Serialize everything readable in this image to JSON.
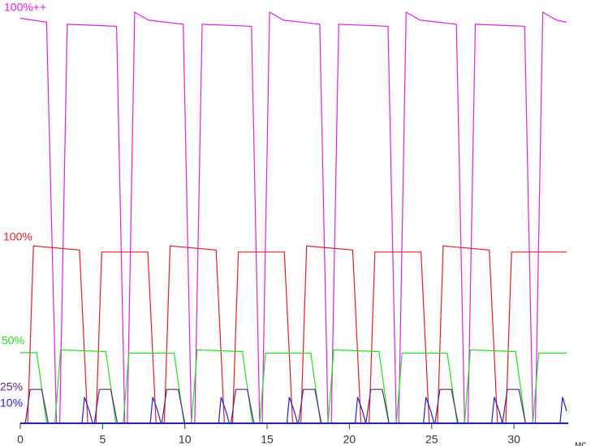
{
  "chart_data": {
    "type": "line",
    "x_label": "мс",
    "xlim": [
      0,
      33.3
    ],
    "xticks": [
      0,
      5,
      10,
      15,
      20,
      25,
      30
    ],
    "ylim": [
      0,
      102
    ],
    "series": [
      {
        "name": "100%++",
        "color": "#e020e0",
        "x": [
          0,
          1.6,
          2.2,
          2.4,
          2.85,
          5.85,
          6.35,
          6.5,
          6.95,
          7.8,
          9.9,
          10.4,
          10.6,
          11.05,
          14.05,
          14.55,
          14.7,
          15.15,
          16,
          18.2,
          18.7,
          18.9,
          19.35,
          22.35,
          22.85,
          23.0,
          23.45,
          24.3,
          26.5,
          27.0,
          27.2,
          27.65,
          30.65,
          31.15,
          31.3,
          31.75,
          32.6,
          33.2
        ],
        "values": [
          100.5,
          99.5,
          0,
          0,
          99,
          98.5,
          0,
          0,
          102,
          100,
          99,
          0,
          0,
          99,
          98.5,
          0,
          0,
          102,
          100,
          99,
          0,
          0,
          99,
          98.5,
          0,
          0,
          102,
          100,
          99,
          0,
          0,
          99,
          98.5,
          0,
          0,
          102,
          100,
          99.5
        ]
      },
      {
        "name": "100%",
        "color": "#e02020",
        "x": [
          0,
          0.45,
          0.8,
          3.6,
          4.1,
          4.6,
          4.95,
          7.75,
          8.25,
          8.75,
          9.1,
          11.9,
          12.4,
          12.9,
          13.25,
          16.05,
          16.55,
          17.05,
          17.4,
          20.2,
          20.7,
          21.2,
          21.55,
          24.35,
          24.85,
          25.35,
          25.7,
          28.5,
          29.0,
          29.5,
          29.85,
          33.2
        ],
        "values": [
          0,
          0,
          44,
          43,
          0,
          0,
          42.5,
          42.5,
          0,
          0,
          44,
          43,
          0,
          0,
          42.5,
          42.5,
          0,
          0,
          44,
          43,
          0,
          0,
          42.5,
          42.5,
          0,
          0,
          44,
          43,
          0,
          0,
          42.5,
          42.5
        ]
      },
      {
        "name": "50%",
        "color": "#20e020",
        "x": [
          0,
          1.0,
          1.6,
          2.1,
          2.45,
          5.2,
          5.8,
          6.25,
          6.6,
          9.35,
          9.95,
          10.4,
          10.75,
          13.5,
          14.1,
          14.55,
          14.9,
          17.65,
          18.25,
          18.7,
          19.05,
          21.8,
          22.4,
          22.85,
          23.2,
          25.95,
          26.55,
          27.0,
          27.35,
          30.1,
          30.7,
          31.15,
          31.5,
          33.2
        ],
        "values": [
          17.5,
          17.5,
          0,
          0,
          18.2,
          17.8,
          0,
          0,
          17.4,
          17.4,
          0,
          0,
          18.2,
          17.8,
          0,
          0,
          17.4,
          17.4,
          0,
          0,
          18.2,
          17.8,
          0,
          0,
          17.4,
          17.4,
          0,
          0,
          18.2,
          17.8,
          0,
          0,
          17.4,
          17.4
        ]
      },
      {
        "name": "25%",
        "color": "#602080",
        "x": [
          0,
          0.3,
          0.6,
          1.3,
          1.7,
          4.5,
          4.8,
          5.5,
          5.9,
          8.6,
          8.9,
          9.6,
          10.0,
          12.8,
          13.1,
          13.8,
          14.2,
          16.9,
          17.2,
          17.9,
          18.3,
          21.0,
          21.3,
          22.0,
          22.4,
          25.2,
          25.5,
          26.2,
          26.6,
          29.3,
          29.6,
          30.3,
          30.7,
          33.2
        ],
        "values": [
          0,
          0,
          8.4,
          8.4,
          0,
          0,
          8.4,
          8.4,
          0,
          0,
          8.4,
          8.4,
          0,
          0,
          8.4,
          8.4,
          0,
          0,
          8.4,
          8.4,
          0,
          0,
          8.4,
          8.4,
          0,
          0,
          8.4,
          8.4,
          0,
          0,
          8.4,
          8.4,
          0,
          0
        ]
      },
      {
        "name": "10%",
        "color": "#2020d0",
        "x": [
          0,
          3.75,
          3.9,
          4.2,
          4.4,
          7.9,
          8.05,
          8.35,
          8.55,
          12.05,
          12.2,
          12.5,
          12.7,
          16.2,
          16.35,
          16.65,
          16.85,
          20.35,
          20.5,
          20.8,
          21.0,
          24.5,
          24.65,
          24.95,
          25.15,
          28.65,
          28.8,
          29.1,
          29.3,
          32.8,
          32.95,
          33.2
        ],
        "values": [
          0,
          0,
          6.5,
          3,
          0,
          0,
          6.5,
          3,
          0,
          0,
          6.5,
          3,
          0,
          0,
          6.5,
          3,
          0,
          0,
          6.5,
          3,
          0,
          0,
          6.5,
          3,
          0,
          0,
          6.5,
          3,
          0,
          0,
          6.5,
          3
        ]
      }
    ]
  }
}
